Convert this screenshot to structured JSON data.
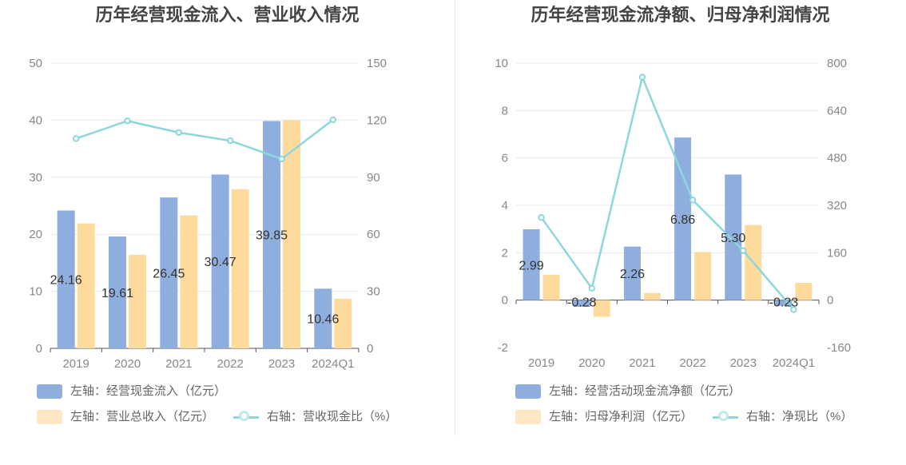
{
  "colors": {
    "bar_primary": "#8eaedd",
    "bar_secondary": "#fedb9c",
    "line": "#8dd7dc",
    "grid": "#e6e8f2",
    "axis_text": "#888888",
    "label_text": "#333333"
  },
  "chart_data": [
    {
      "type": "bar",
      "title": "历年经营现金流入、营业收入情况",
      "categories": [
        "2019",
        "2020",
        "2021",
        "2022",
        "2023",
        "2024Q1"
      ],
      "left_axis": {
        "min": 0,
        "max": 50,
        "ticks": [
          0,
          10,
          20,
          30,
          40,
          50
        ]
      },
      "right_axis": {
        "min": 0,
        "max": 150,
        "ticks": [
          0,
          30,
          60,
          90,
          120,
          150
        ]
      },
      "series": [
        {
          "name": "左轴：经营现金流入（亿元）",
          "type": "bar",
          "axis": "left",
          "color": "#8eaedd",
          "values": [
            24.16,
            19.61,
            26.45,
            30.47,
            39.85,
            10.46
          ],
          "labels": [
            "24.16",
            "19.61",
            "26.45",
            "30.47",
            "39.85",
            "10.46"
          ]
        },
        {
          "name": "左轴：营业总收入（亿元）",
          "type": "bar",
          "axis": "left",
          "color": "#fedb9c",
          "values": [
            21.9,
            16.4,
            23.3,
            27.9,
            40.0,
            8.7
          ]
        },
        {
          "name": "右轴：营收现金比（%）",
          "type": "line",
          "axis": "right",
          "color": "#8dd7dc",
          "values": [
            110.3,
            119.6,
            113.5,
            109.2,
            99.6,
            120.2
          ]
        }
      ],
      "legend_position": "bottom-left",
      "grid": true
    },
    {
      "type": "bar",
      "title": "历年经营现金流净额、归母净利润情况",
      "categories": [
        "2019",
        "2020",
        "2021",
        "2022",
        "2023",
        "2024Q1"
      ],
      "left_axis": {
        "min": -2,
        "max": 10,
        "ticks": [
          -2,
          0,
          2,
          4,
          6,
          8,
          10
        ]
      },
      "right_axis": {
        "min": -160,
        "max": 800,
        "ticks": [
          -160,
          0,
          160,
          320,
          480,
          640,
          800
        ]
      },
      "series": [
        {
          "name": "左轴：经营活动现金流净额（亿元）",
          "type": "bar",
          "axis": "left",
          "color": "#8eaedd",
          "values": [
            2.99,
            -0.28,
            2.26,
            6.86,
            5.3,
            -0.23
          ],
          "labels": [
            "2.99",
            "-0.28",
            "2.26",
            "6.86",
            "5.30",
            "-0.23"
          ]
        },
        {
          "name": "左轴：归母净利润（亿元）",
          "type": "bar",
          "axis": "left",
          "color": "#fedb9c",
          "values": [
            1.07,
            -0.7,
            0.3,
            2.03,
            3.17,
            0.73
          ]
        },
        {
          "name": "右轴：净现比（%）",
          "type": "line",
          "axis": "right",
          "color": "#8dd7dc",
          "values": [
            279,
            40,
            753,
            338,
            167,
            -32
          ]
        }
      ],
      "legend_position": "bottom-left",
      "grid": true
    }
  ]
}
